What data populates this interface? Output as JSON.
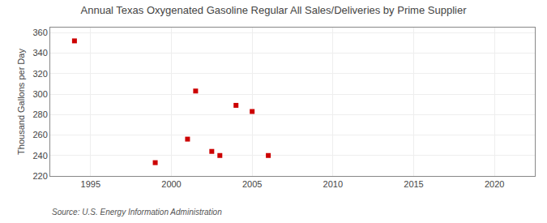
{
  "chart_data": {
    "type": "scatter",
    "title": "Annual Texas Oxygenated Gasoline Regular All Sales/Deliveries by Prime Supplier",
    "ylabel": "Thousand Gallons per Day",
    "annotations": [
      "Source: U.S. Energy Information Administration"
    ],
    "x": [
      1994,
      1999,
      2001,
      2001.5,
      2002.5,
      2003,
      2004,
      2005,
      2006
    ],
    "values": [
      352,
      233,
      256,
      303,
      244,
      240,
      289,
      283,
      240
    ],
    "color": "#cc0000",
    "marker": "square",
    "xlim": [
      1992.5,
      2022.5
    ],
    "ylim": [
      220,
      365
    ],
    "xticks": [
      1995,
      2000,
      2005,
      2010,
      2015,
      2020
    ],
    "yticks": [
      220,
      240,
      260,
      280,
      300,
      320,
      340,
      360
    ],
    "grid": true
  }
}
